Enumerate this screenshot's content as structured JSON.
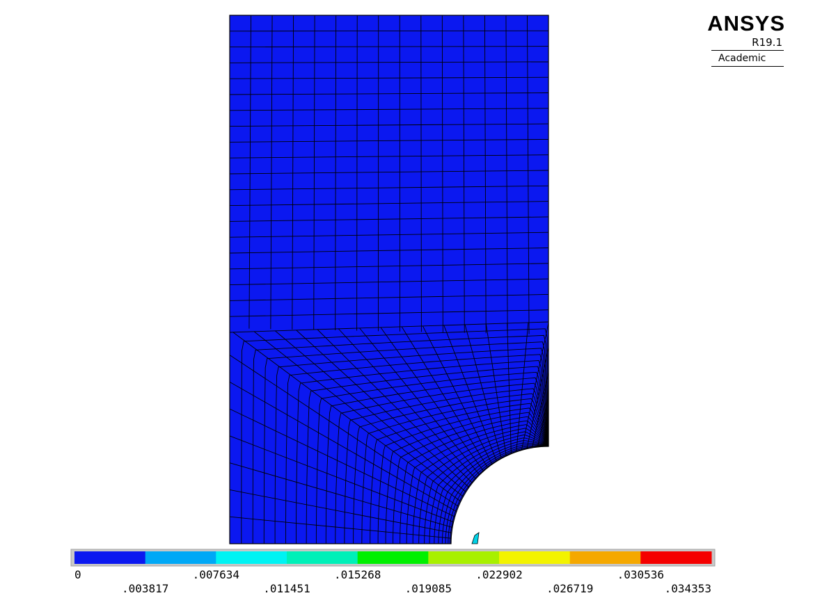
{
  "logo": {
    "name": "ANSYS",
    "version": "R19.1",
    "edition": "Academic"
  },
  "legend": {
    "colors": [
      "#0b18f0",
      "#00a8f6",
      "#00f3f3",
      "#00f0b8",
      "#00f000",
      "#a8f000",
      "#f3f300",
      "#f5a800",
      "#f50000"
    ],
    "labels": [
      "0",
      ".003817",
      ".007634",
      ".011451",
      ".015268",
      ".019085",
      ".022902",
      ".026719",
      ".030536",
      ".034353"
    ]
  },
  "model": {
    "fill_color": "#0b18f0",
    "mesh_line_color": "#000000",
    "hotspot_color": "#00d2e6"
  }
}
